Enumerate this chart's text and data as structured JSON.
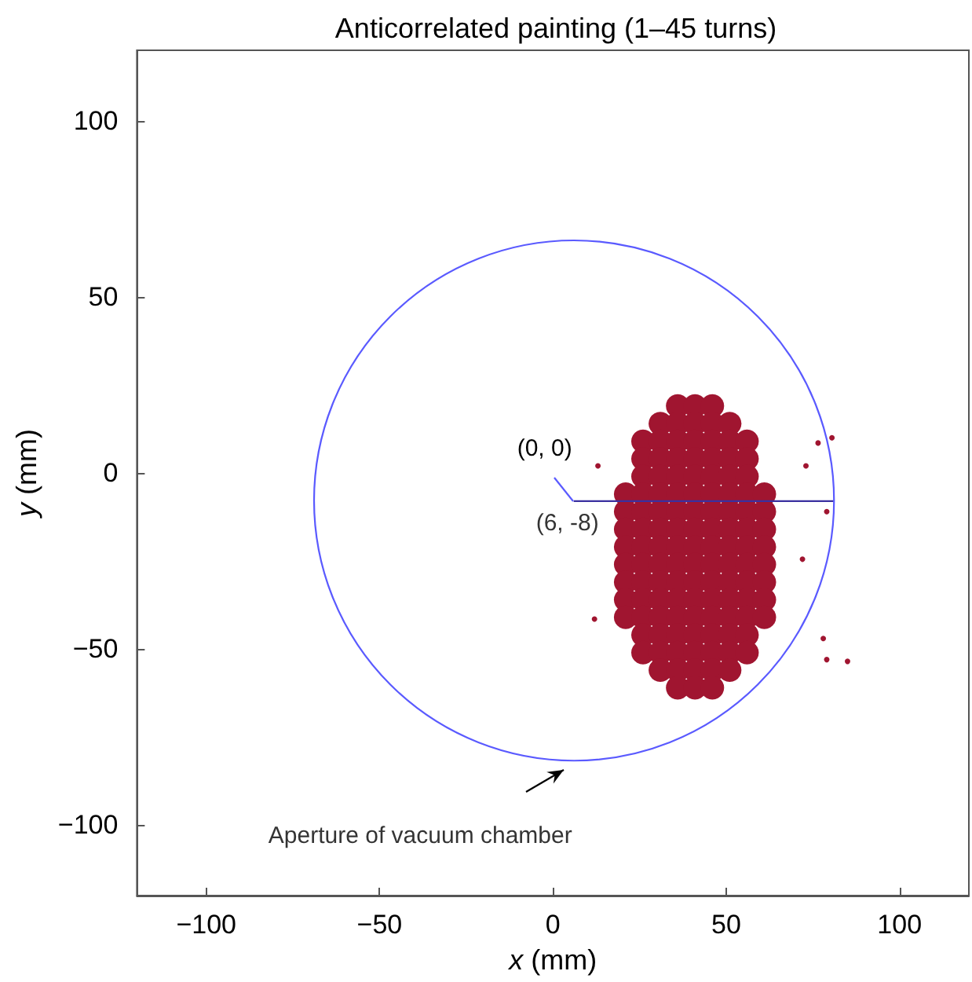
{
  "chart_data": {
    "type": "scatter",
    "title": "Anticorrelated painting (1–45 turns)",
    "xlabel": "x (mm)",
    "ylabel": "y (mm)",
    "xlim": [
      -120,
      120
    ],
    "ylim": [
      -120,
      120
    ],
    "xticks": [
      -100,
      -50,
      0,
      50,
      100
    ],
    "yticks": [
      -100,
      -50,
      0,
      50,
      100
    ],
    "grid": false,
    "marker": "circle",
    "annotations": [
      "(0, 0)",
      {
        "text": "(6, -8)",
        "x": 6,
        "y": -8
      },
      {
        "text": "Aperture of vacuum chamber",
        "x": 4,
        "y": -83
      }
    ],
    "series": [
      {
        "color": "#a01530",
        "x": [
          21,
          21,
          21,
          21,
          21,
          21,
          21,
          21,
          26,
          26,
          26,
          26,
          26,
          26,
          26,
          26,
          26,
          26,
          26,
          26,
          26,
          31,
          31,
          31,
          31,
          31,
          31,
          31,
          31,
          31,
          31,
          31,
          31,
          31,
          31,
          31,
          36,
          36,
          36,
          36,
          36,
          36,
          36,
          36,
          36,
          36,
          36,
          36,
          36,
          36,
          36,
          36,
          36,
          41,
          41,
          41,
          41,
          41,
          41,
          41,
          41,
          41,
          41,
          41,
          41,
          41,
          41,
          41,
          41,
          41,
          46,
          46,
          46,
          46,
          46,
          46,
          46,
          46,
          46,
          46,
          46,
          46,
          46,
          46,
          46,
          46,
          46,
          51,
          51,
          51,
          51,
          51,
          51,
          51,
          51,
          51,
          51,
          51,
          51,
          51,
          51,
          51,
          56,
          56,
          56,
          56,
          56,
          56,
          56,
          56,
          56,
          56,
          56,
          56,
          56,
          61,
          61,
          61,
          61,
          61,
          61,
          61,
          61
        ],
        "values": [
          -6,
          -11,
          -16,
          -21,
          -26,
          -31,
          -36,
          -41,
          9,
          4,
          -1,
          -6,
          -11,
          -16,
          -21,
          -26,
          -31,
          -36,
          -41,
          -46,
          -51,
          14,
          9,
          4,
          -1,
          -6,
          -11,
          -16,
          -21,
          -26,
          -31,
          -36,
          -41,
          -46,
          -51,
          -56,
          19,
          14,
          9,
          4,
          -1,
          -6,
          -11,
          -16,
          -21,
          -26,
          -31,
          -36,
          -41,
          -46,
          -51,
          -56,
          -61,
          19,
          14,
          9,
          4,
          -1,
          -6,
          -11,
          -16,
          -21,
          -26,
          -31,
          -36,
          -41,
          -46,
          -51,
          -56,
          -61,
          19,
          14,
          9,
          4,
          -1,
          -6,
          -11,
          -16,
          -21,
          -26,
          -31,
          -36,
          -41,
          -46,
          -51,
          -56,
          -61,
          14,
          9,
          4,
          -1,
          -6,
          -11,
          -16,
          -21,
          -26,
          -31,
          -36,
          -41,
          -46,
          -51,
          -56,
          9,
          4,
          -1,
          -6,
          -11,
          -16,
          -21,
          -26,
          -31,
          -36,
          -41,
          -46,
          -51,
          -6,
          -11,
          -16,
          -21,
          -26,
          -31,
          -36,
          -41
        ]
      },
      {
        "color": "#a01530",
        "x": [
          76.5,
          80.5,
          79,
          78,
          79,
          85,
          12,
          72,
          73,
          13
        ],
        "values": [
          8.5,
          10,
          -11,
          -47,
          -53,
          -53.5,
          -41.5,
          -24.5,
          2,
          2
        ]
      },
      {
        "type": "line",
        "color": "#3a30a0",
        "x": [
          6,
          81
        ],
        "values": [
          -8,
          -8
        ]
      }
    ]
  }
}
